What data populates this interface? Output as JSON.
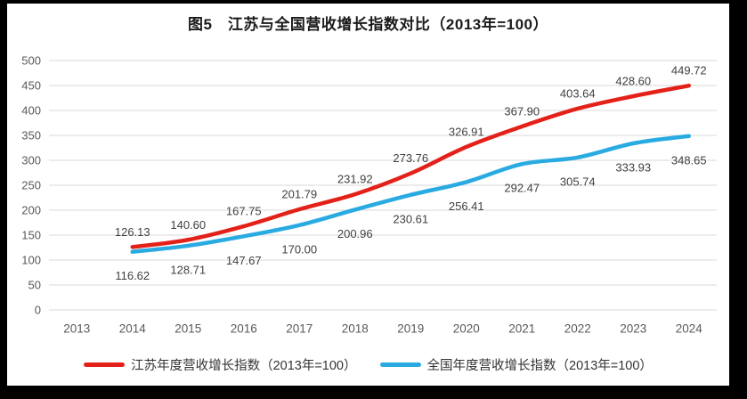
{
  "chart_data": {
    "type": "line",
    "title": "图5　江苏与全国营收增长指数对比（2013年=100）",
    "categories": [
      "2013",
      "2014",
      "2015",
      "2016",
      "2017",
      "2018",
      "2019",
      "2020",
      "2021",
      "2022",
      "2023",
      "2024"
    ],
    "series": [
      {
        "name": "江苏年度营收增长指数（2013年=100）",
        "color": "#e32119",
        "values": [
          null,
          126.13,
          140.6,
          167.75,
          201.79,
          231.92,
          273.76,
          326.91,
          367.9,
          403.64,
          428.6,
          449.72
        ]
      },
      {
        "name": "全国年度营收增长指数（2013年=100）",
        "color": "#29abe2",
        "values": [
          null,
          116.62,
          128.71,
          147.67,
          170.0,
          200.96,
          230.61,
          256.41,
          292.47,
          305.74,
          333.93,
          348.65
        ]
      }
    ],
    "ylim": [
      0,
      500
    ],
    "ytick_step": 50,
    "grid": "horizontal",
    "legend_position": "bottom",
    "data_label_format": "two-decimals",
    "colors": {
      "gridline": "#d9d9d9",
      "axis_text": "#595959",
      "data_label_text": "#404040",
      "title_text": "#1a1a1a",
      "frame_background": "#000000",
      "surface_background": "#ffffff"
    }
  }
}
